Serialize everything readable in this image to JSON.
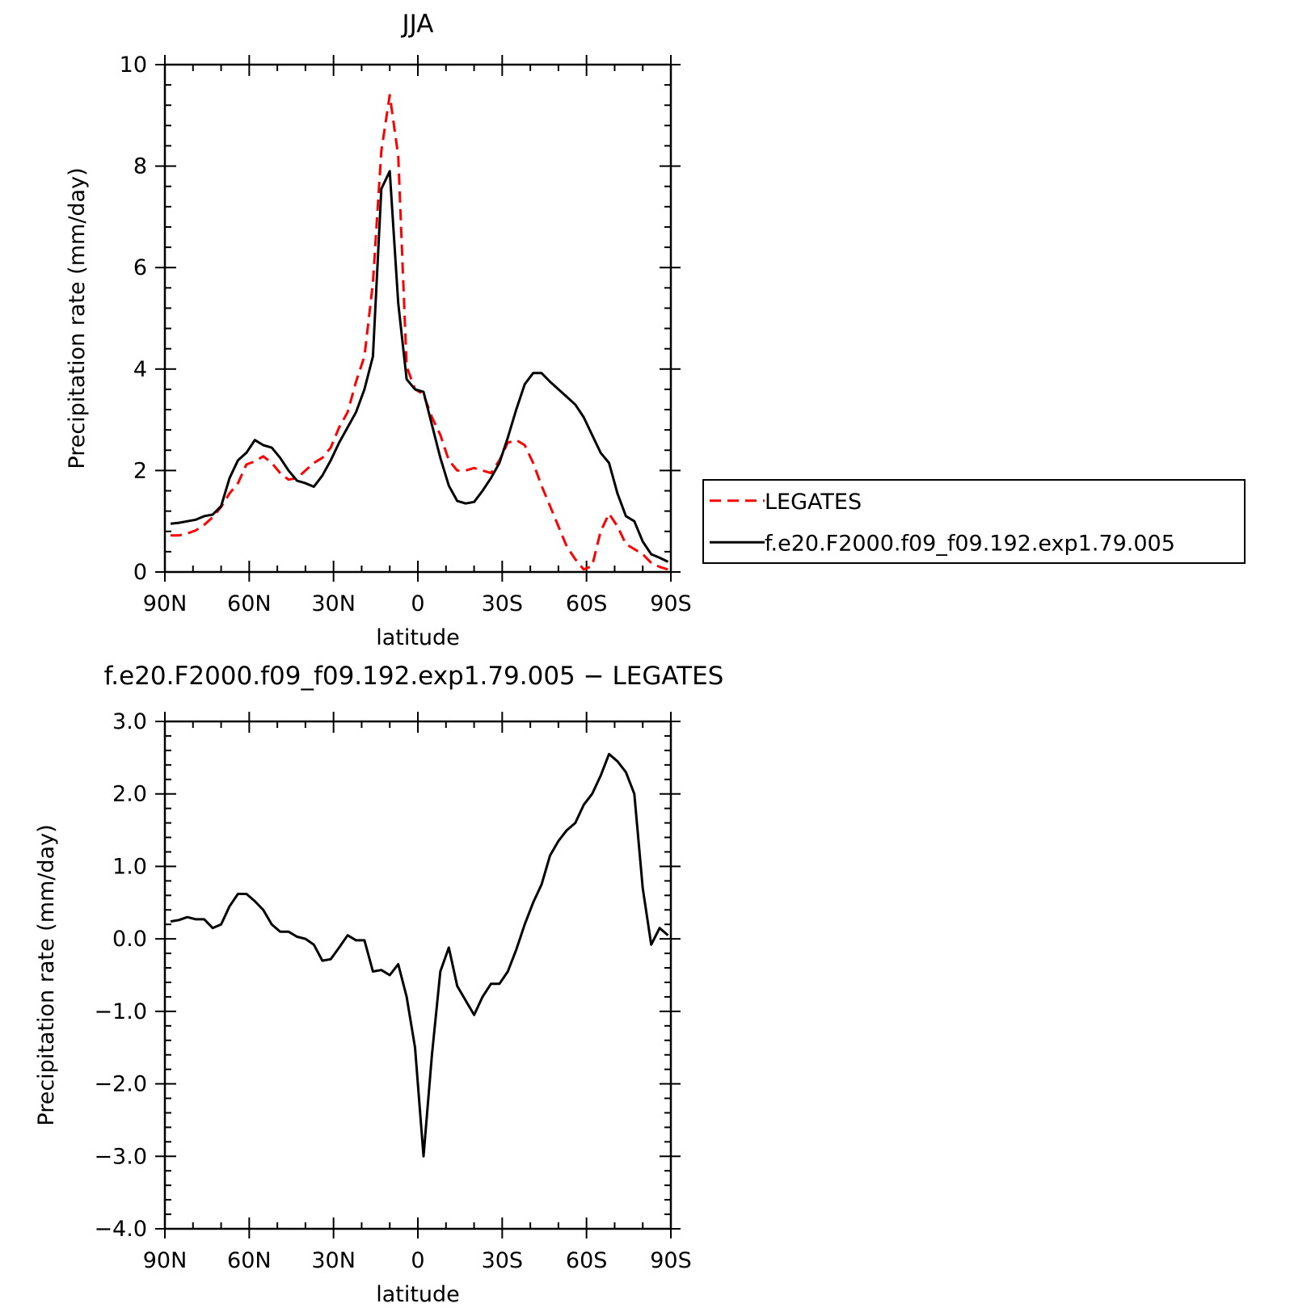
{
  "chart_data": [
    {
      "type": "line",
      "title": "JJA",
      "xlabel": "latitude",
      "ylabel": "Precipitation rate (mm/day)",
      "xlim": [
        90,
        -90
      ],
      "ylim": [
        0,
        10
      ],
      "yticks": [
        0,
        2,
        4,
        6,
        8,
        10
      ],
      "ytick_labels": [
        "0",
        "2",
        "4",
        "6",
        "8",
        "10"
      ],
      "xticks": [
        90,
        60,
        30,
        0,
        -30,
        -60,
        -90
      ],
      "xtick_labels": [
        "90N",
        "60N",
        "30N",
        "0",
        "30S",
        "60S",
        "90S"
      ],
      "grid": false,
      "legend": "right",
      "series": [
        {
          "name": "LEGATES",
          "color": "#ff0000",
          "dash": "dashed",
          "x": [
            88,
            85,
            82,
            79,
            76,
            73,
            70,
            67,
            64,
            61,
            58,
            55,
            52,
            49,
            46,
            43,
            40,
            37,
            34,
            31,
            28,
            25,
            22,
            19,
            16,
            13,
            10,
            7,
            4,
            1,
            -2,
            -5,
            -8,
            -11,
            -14,
            -17,
            -20,
            -23,
            -26,
            -29,
            -32,
            -35,
            -38,
            -41,
            -44,
            -47,
            -50,
            -53,
            -56,
            -59,
            -62,
            -65,
            -68,
            -71,
            -74,
            -77,
            -80,
            -83,
            -86,
            -89
          ],
          "y": [
            0.72,
            0.72,
            0.76,
            0.82,
            0.93,
            1.08,
            1.28,
            1.55,
            1.75,
            2.12,
            2.18,
            2.28,
            2.15,
            1.95,
            1.82,
            1.85,
            2.0,
            2.15,
            2.25,
            2.45,
            2.85,
            3.15,
            3.75,
            4.25,
            5.7,
            8.3,
            9.4,
            8.2,
            4.05,
            3.6,
            3.5,
            3.05,
            2.7,
            2.2,
            2.0,
            2.0,
            2.05,
            2.0,
            1.95,
            2.2,
            2.55,
            2.6,
            2.5,
            2.15,
            1.7,
            1.3,
            0.9,
            0.5,
            0.25,
            0.05,
            0.12,
            0.8,
            1.15,
            0.9,
            0.55,
            0.45,
            0.35,
            0.18,
            0.1,
            0.05
          ]
        },
        {
          "name": "f.e20.F2000.f09_f09.192.exp1.79.005",
          "color": "#000000",
          "dash": "solid",
          "x": [
            88,
            85,
            82,
            79,
            76,
            73,
            70,
            67,
            64,
            61,
            58,
            55,
            52,
            49,
            46,
            43,
            40,
            37,
            34,
            31,
            28,
            25,
            22,
            19,
            16,
            13,
            10,
            7,
            4,
            1,
            -2,
            -5,
            -8,
            -11,
            -14,
            -17,
            -20,
            -23,
            -26,
            -29,
            -32,
            -35,
            -38,
            -41,
            -44,
            -47,
            -50,
            -53,
            -56,
            -59,
            -62,
            -65,
            -68,
            -71,
            -74,
            -77,
            -80,
            -83,
            -86,
            -89
          ],
          "y": [
            0.95,
            0.97,
            1.0,
            1.03,
            1.1,
            1.13,
            1.3,
            1.85,
            2.2,
            2.35,
            2.6,
            2.5,
            2.45,
            2.25,
            2.0,
            1.8,
            1.75,
            1.68,
            1.9,
            2.2,
            2.55,
            2.85,
            3.15,
            3.6,
            4.25,
            7.55,
            7.9,
            5.3,
            3.8,
            3.6,
            3.55,
            2.9,
            2.25,
            1.7,
            1.4,
            1.35,
            1.38,
            1.6,
            1.85,
            2.15,
            2.65,
            3.2,
            3.7,
            3.92,
            3.92,
            3.75,
            3.6,
            3.45,
            3.3,
            3.05,
            2.7,
            2.35,
            2.15,
            1.55,
            1.1,
            1.0,
            0.6,
            0.35,
            0.28,
            0.2
          ]
        }
      ]
    },
    {
      "type": "line",
      "title": "f.e20.F2000.f09_f09.192.exp1.79.005 − LEGATES",
      "xlabel": "latitude",
      "ylabel": "Precipitation rate (mm/day)",
      "xlim": [
        90,
        -90
      ],
      "ylim": [
        -4.0,
        3.0
      ],
      "yticks": [
        -4.0,
        -3.0,
        -2.0,
        -1.0,
        0.0,
        1.0,
        2.0,
        3.0
      ],
      "ytick_labels": [
        "−4.0",
        "−3.0",
        "−2.0",
        "−1.0",
        "0.0",
        "1.0",
        "2.0",
        "3.0"
      ],
      "xticks": [
        90,
        60,
        30,
        0,
        -30,
        -60,
        -90
      ],
      "xtick_labels": [
        "90N",
        "60N",
        "30N",
        "0",
        "30S",
        "60S",
        "90S"
      ],
      "grid": false,
      "series": [
        {
          "color": "#000000",
          "dash": "solid",
          "x": [
            88,
            85,
            82,
            79,
            76,
            73,
            70,
            67,
            64,
            61,
            58,
            55,
            52,
            49,
            46,
            43,
            40,
            37,
            34,
            31,
            28,
            25,
            22,
            19,
            16,
            13,
            10,
            7,
            4,
            1,
            -2,
            -5,
            -8,
            -11,
            -14,
            -17,
            -20,
            -23,
            -26,
            -29,
            -32,
            -35,
            -38,
            -41,
            -44,
            -47,
            -50,
            -53,
            -56,
            -59,
            -62,
            -65,
            -68,
            -71,
            -74,
            -77,
            -80,
            -83,
            -86,
            -89
          ],
          "y": [
            0.24,
            0.26,
            0.3,
            0.27,
            0.27,
            0.15,
            0.2,
            0.45,
            0.62,
            0.62,
            0.52,
            0.4,
            0.2,
            0.1,
            0.1,
            0.03,
            0.0,
            -0.08,
            -0.3,
            -0.28,
            -0.12,
            0.05,
            -0.02,
            -0.02,
            -0.45,
            -0.43,
            -0.5,
            -0.35,
            -0.8,
            -1.5,
            -3.0,
            -1.6,
            -0.45,
            -0.12,
            -0.65,
            -0.85,
            -1.05,
            -0.8,
            -0.62,
            -0.62,
            -0.45,
            -0.15,
            0.2,
            0.5,
            0.75,
            1.15,
            1.35,
            1.5,
            1.6,
            1.85,
            2.0,
            2.25,
            2.55,
            2.45,
            2.3,
            2.0,
            0.7,
            -0.08,
            0.15,
            0.05
          ]
        }
      ]
    }
  ]
}
